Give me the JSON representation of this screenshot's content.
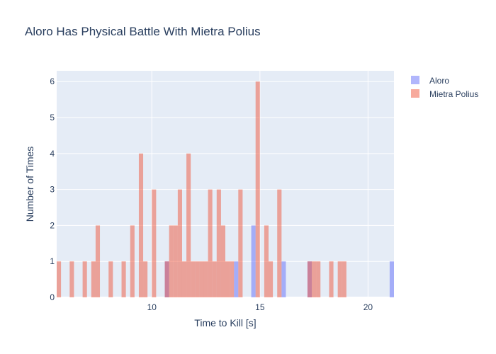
{
  "chart_data": {
    "type": "bar",
    "title": "Aloro Has Physical Battle With Mietra Polius",
    "xlabel": "Time to Kill [s]",
    "ylabel": "Number of Times",
    "xlim": [
      5.6,
      21.2
    ],
    "ylim": [
      0,
      6.3
    ],
    "bin_width": 0.2,
    "x_ticks": [
      10,
      15,
      20
    ],
    "y_ticks": [
      0,
      1,
      2,
      3,
      4,
      5,
      6
    ],
    "grid": true,
    "legend_position": "top-right",
    "series": [
      {
        "name": "Aloro",
        "color": "#636efa",
        "opacity": 0.5,
        "bins": [
          {
            "x": 10.6,
            "y": 1
          },
          {
            "x": 13.8,
            "y": 1
          },
          {
            "x": 14.6,
            "y": 2
          },
          {
            "x": 16.0,
            "y": 1
          },
          {
            "x": 17.2,
            "y": 1
          },
          {
            "x": 21.0,
            "y": 1
          }
        ]
      },
      {
        "name": "Mietra Polius",
        "color": "#ef553b",
        "opacity": 0.5,
        "bins": [
          {
            "x": 5.6,
            "y": 1
          },
          {
            "x": 6.2,
            "y": 1
          },
          {
            "x": 6.8,
            "y": 1
          },
          {
            "x": 7.2,
            "y": 1
          },
          {
            "x": 7.4,
            "y": 2
          },
          {
            "x": 8.0,
            "y": 1
          },
          {
            "x": 8.6,
            "y": 1
          },
          {
            "x": 9.0,
            "y": 2
          },
          {
            "x": 9.4,
            "y": 4
          },
          {
            "x": 9.6,
            "y": 1
          },
          {
            "x": 10.0,
            "y": 3
          },
          {
            "x": 10.6,
            "y": 1
          },
          {
            "x": 10.8,
            "y": 2
          },
          {
            "x": 11.0,
            "y": 2
          },
          {
            "x": 11.2,
            "y": 3
          },
          {
            "x": 11.4,
            "y": 1
          },
          {
            "x": 11.6,
            "y": 4
          },
          {
            "x": 11.8,
            "y": 1
          },
          {
            "x": 12.0,
            "y": 1
          },
          {
            "x": 12.2,
            "y": 1
          },
          {
            "x": 12.4,
            "y": 1
          },
          {
            "x": 12.6,
            "y": 3
          },
          {
            "x": 12.8,
            "y": 1
          },
          {
            "x": 13.0,
            "y": 3
          },
          {
            "x": 13.2,
            "y": 2
          },
          {
            "x": 13.4,
            "y": 1
          },
          {
            "x": 13.6,
            "y": 1
          },
          {
            "x": 14.0,
            "y": 3
          },
          {
            "x": 14.8,
            "y": 6
          },
          {
            "x": 15.2,
            "y": 2
          },
          {
            "x": 15.4,
            "y": 1
          },
          {
            "x": 15.8,
            "y": 3
          },
          {
            "x": 17.2,
            "y": 1
          },
          {
            "x": 17.4,
            "y": 1
          },
          {
            "x": 17.6,
            "y": 1
          },
          {
            "x": 18.2,
            "y": 1
          },
          {
            "x": 18.6,
            "y": 1
          },
          {
            "x": 18.8,
            "y": 1
          }
        ]
      }
    ]
  }
}
